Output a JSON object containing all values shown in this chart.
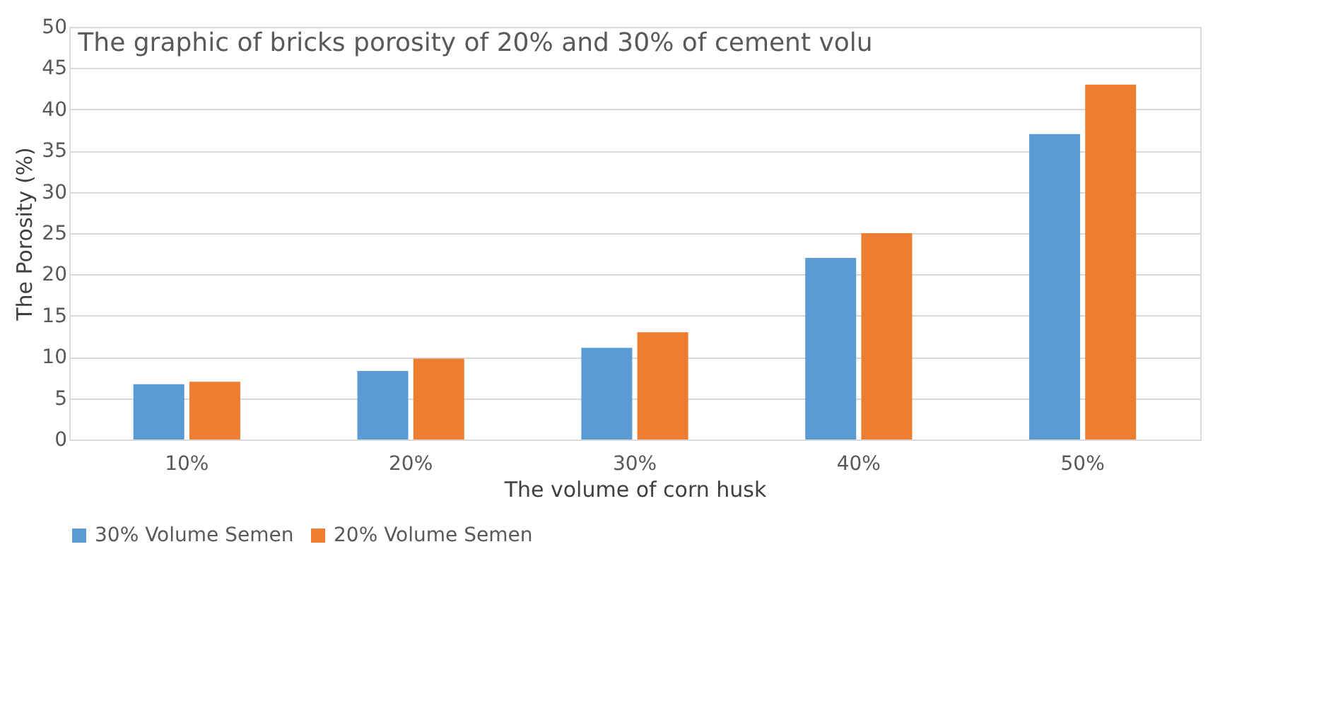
{
  "chart_data": {
    "type": "bar",
    "title": "The graphic of bricks porosity of 20% and 30% of cement volu",
    "xlabel": "The volume of corn husk",
    "ylabel": "The Porosity (%)",
    "categories": [
      "10%",
      "20%",
      "30%",
      "40%",
      "50%"
    ],
    "series": [
      {
        "name": "30% Volume Semen",
        "color": "#5b9bd5",
        "values": [
          6.7,
          8.3,
          11.1,
          22,
          37
        ]
      },
      {
        "name": "20% Volume Semen",
        "color": "#ed7d31",
        "values": [
          7,
          9.8,
          13,
          25,
          43
        ]
      }
    ],
    "ylim": [
      0,
      50
    ],
    "yticks": [
      0,
      5,
      10,
      15,
      20,
      25,
      30,
      35,
      40,
      45,
      50
    ],
    "grid": "y",
    "legend": "bottom"
  }
}
